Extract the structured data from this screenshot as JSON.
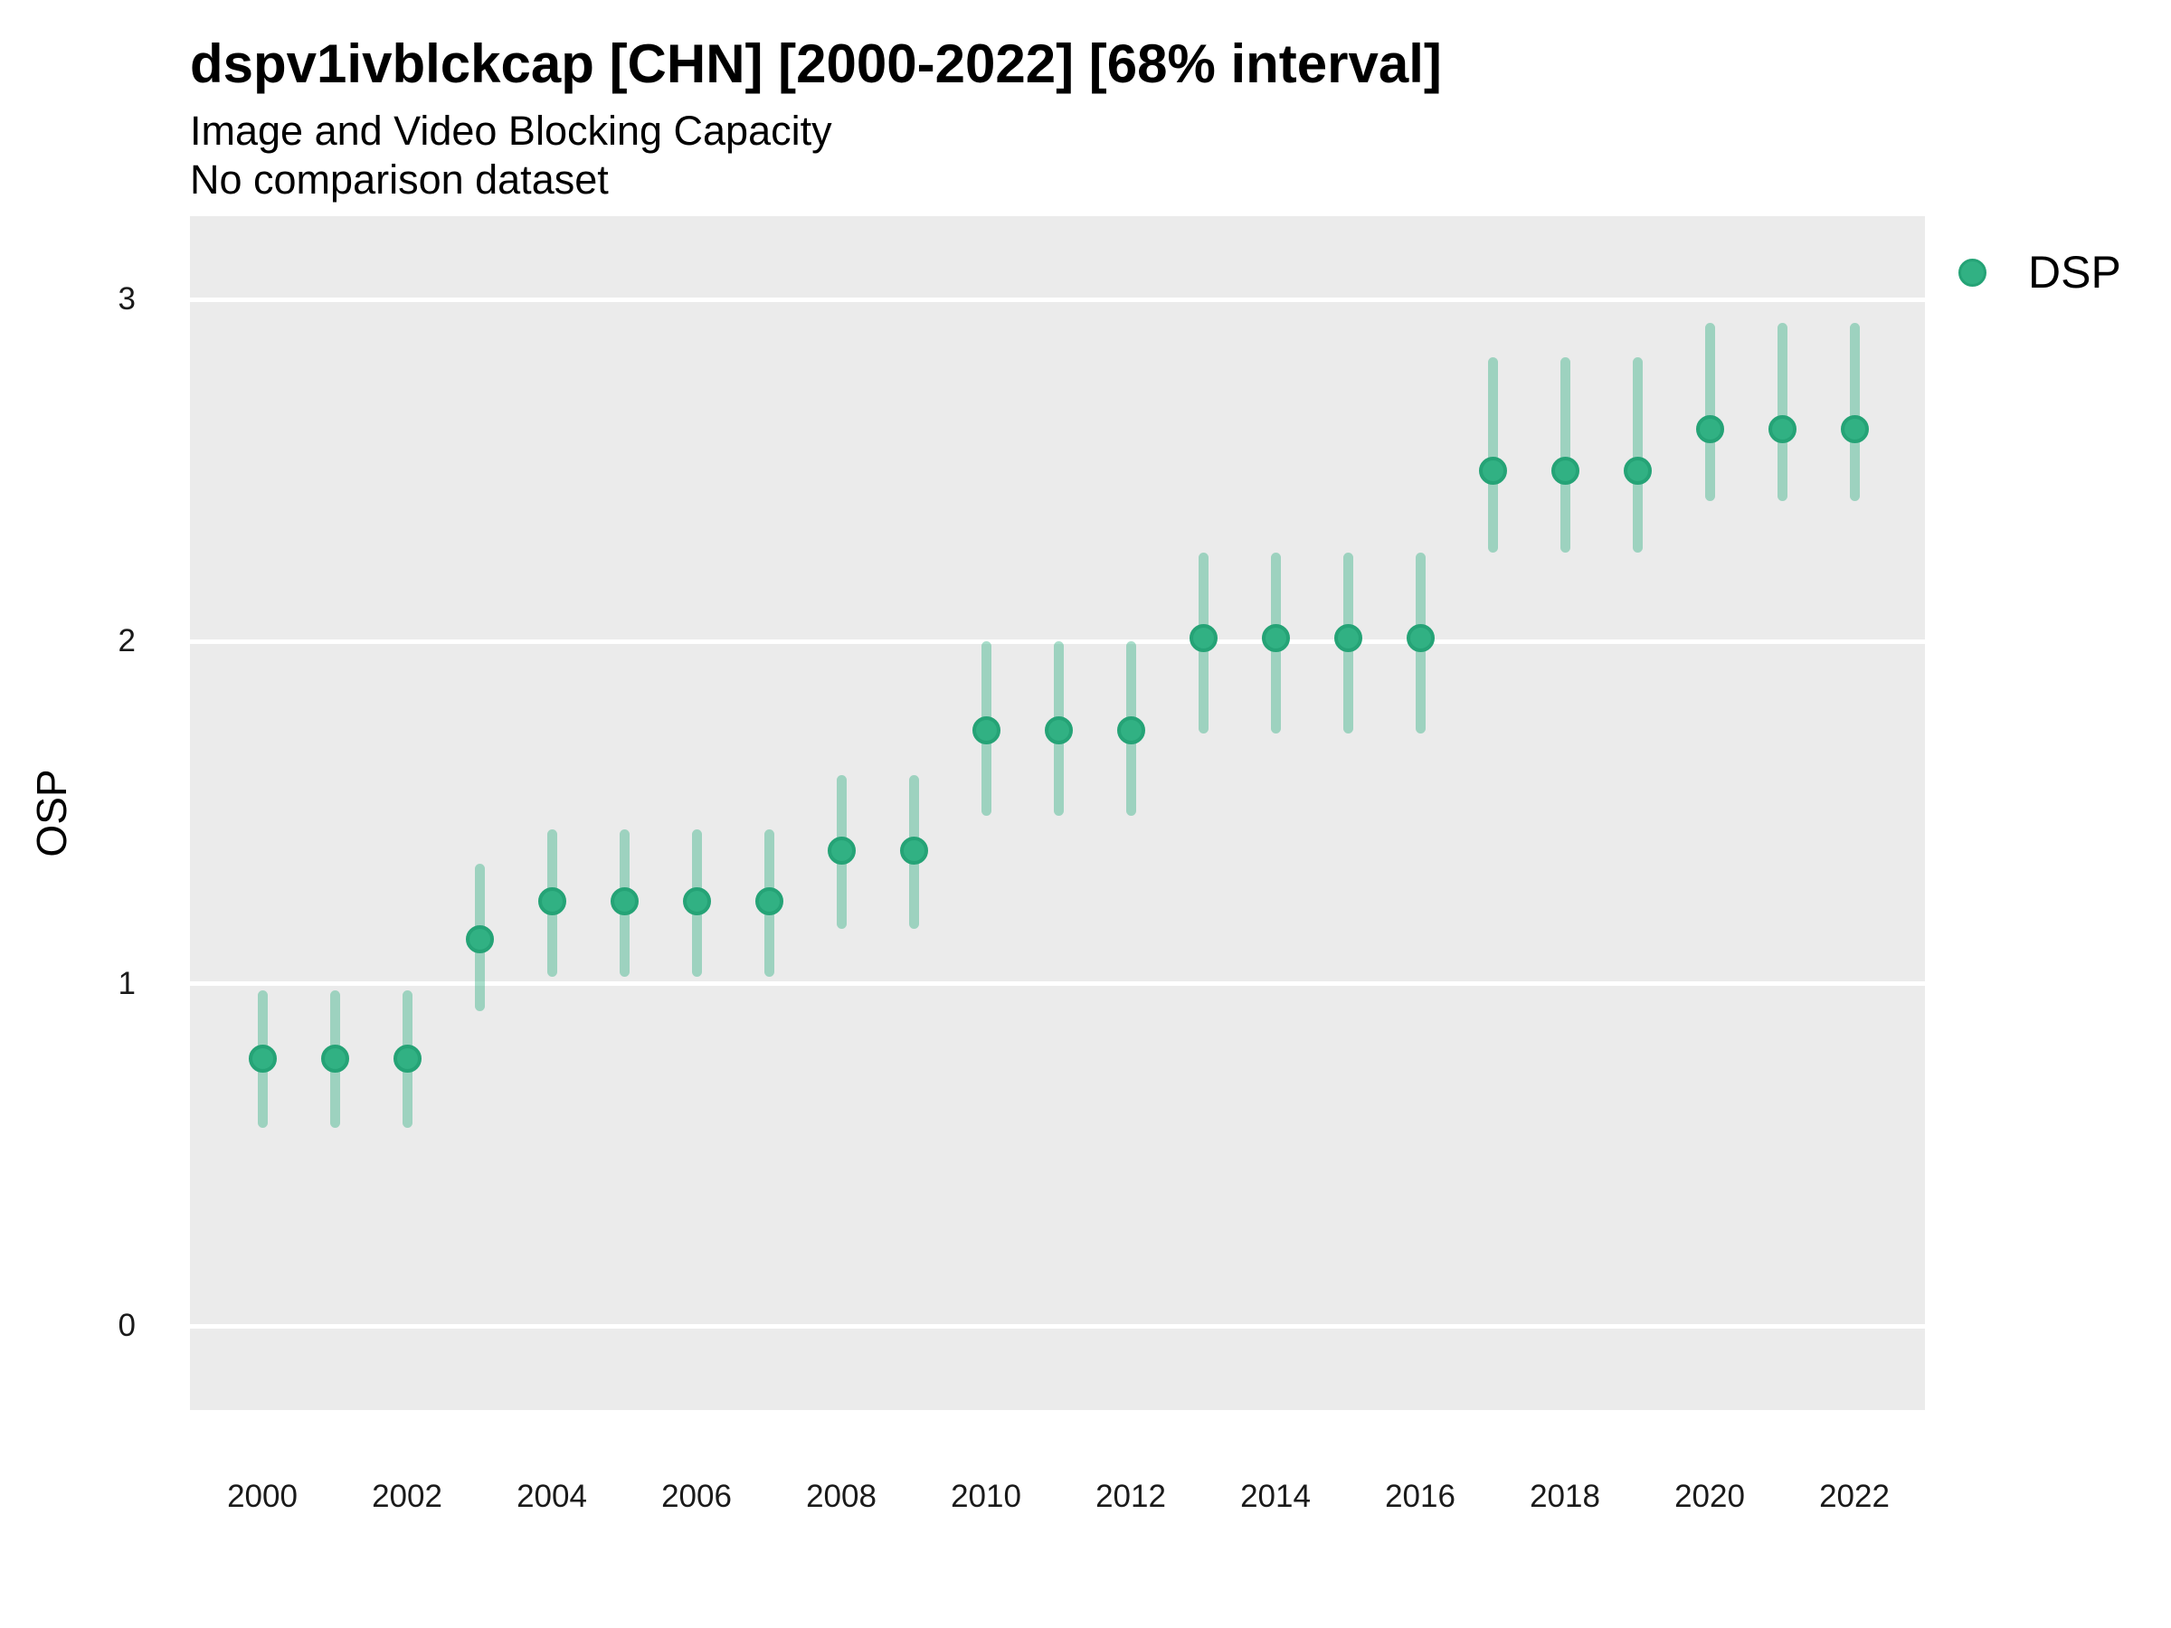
{
  "header": {
    "title": "dspv1ivblckcap [CHN] [2000-2022] [68% interval]",
    "subtitle": "Image and Video Blocking Capacity",
    "note": "No comparison dataset"
  },
  "axes": {
    "y_label": "OSP",
    "y_ticks": [
      0,
      1,
      2,
      3
    ],
    "x_ticks": [
      2000,
      2002,
      2004,
      2006,
      2008,
      2010,
      2012,
      2014,
      2016,
      2018,
      2020,
      2022
    ]
  },
  "legend": {
    "position": "right-top",
    "items": [
      {
        "label": "DSP",
        "color": "#2fb183"
      }
    ]
  },
  "colors": {
    "panel_bg": "#ebebeb",
    "gridline": "#ffffff",
    "point_fill": "#31b183",
    "point_border": "#25a376",
    "interval": "rgba(51,177,131,0.42)",
    "text": "#000000",
    "tick_text": "#1a1a1a"
  },
  "chart_data": {
    "type": "scatter",
    "subtype": "point-interval",
    "title": "dspv1ivblckcap [CHN] [2000-2022] [68% interval]",
    "subtitle": "Image and Video Blocking Capacity",
    "note": "No comparison dataset",
    "interval": "68%",
    "xlabel": "",
    "ylabel": "OSP",
    "xlim": [
      1999,
      2023
    ],
    "ylim": [
      -0.25,
      3.25
    ],
    "y_ticks": [
      0,
      1,
      2,
      3
    ],
    "x_ticks": [
      2000,
      2002,
      2004,
      2006,
      2008,
      2010,
      2012,
      2014,
      2016,
      2018,
      2020,
      2022
    ],
    "grid": "horizontal-major-only",
    "legend_position": "right-top",
    "series": [
      {
        "name": "DSP",
        "color": "#2fb183",
        "x": [
          2000,
          2001,
          2002,
          2003,
          2004,
          2005,
          2006,
          2007,
          2008,
          2009,
          2010,
          2011,
          2012,
          2013,
          2014,
          2015,
          2016,
          2017,
          2018,
          2019,
          2020,
          2021,
          2022
        ],
        "y": [
          0.78,
          0.78,
          0.78,
          1.13,
          1.24,
          1.24,
          1.24,
          1.24,
          1.39,
          1.39,
          1.74,
          1.74,
          1.74,
          2.01,
          2.01,
          2.01,
          2.01,
          2.5,
          2.5,
          2.5,
          2.62,
          2.62,
          2.62
        ],
        "y_lo": [
          0.58,
          0.58,
          0.58,
          0.92,
          1.02,
          1.02,
          1.02,
          1.02,
          1.16,
          1.16,
          1.49,
          1.49,
          1.49,
          1.73,
          1.73,
          1.73,
          1.73,
          2.26,
          2.26,
          2.26,
          2.41,
          2.41,
          2.41
        ],
        "y_hi": [
          0.98,
          0.98,
          0.98,
          1.35,
          1.45,
          1.45,
          1.45,
          1.45,
          1.61,
          1.61,
          2.0,
          2.0,
          2.0,
          2.26,
          2.26,
          2.26,
          2.26,
          2.83,
          2.83,
          2.83,
          2.93,
          2.93,
          2.93
        ]
      }
    ]
  }
}
